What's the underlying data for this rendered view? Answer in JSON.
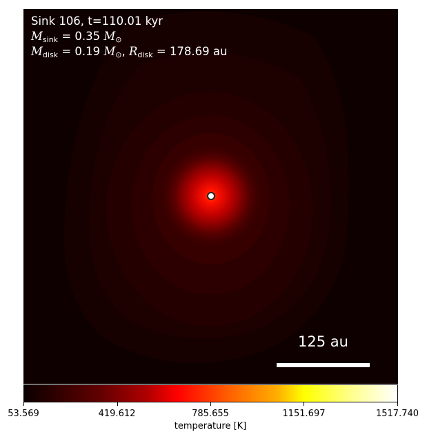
{
  "annotation": {
    "line1": "Sink 106, t=110.01 kyr",
    "m_sink_symbol": "M",
    "m_sink_sub": "sink",
    "m_sink_value": "= 0.35",
    "m_sun": "M",
    "m_sun_sub": "⊙",
    "m_disk_symbol": "M",
    "m_disk_sub": "disk",
    "m_disk_value": "= 0.19",
    "r_disk_symbol": "R",
    "r_disk_sub": "disk",
    "r_disk_value": "= 178.69 au",
    "comma": ","
  },
  "scale_bar": {
    "label": "125 au"
  },
  "chart_data": {
    "type": "heatmap",
    "colormap": "hot",
    "colorbar": {
      "label": "temperature [K]",
      "range": [
        53.569,
        1517.74
      ],
      "ticks": [
        "53.569",
        "419.612",
        "785.655",
        "1151.697",
        "1517.740"
      ],
      "orientation": "horizontal",
      "placement": "bottom"
    },
    "marker": {
      "type": "sink",
      "position": "center"
    },
    "background_color": "#0f0000"
  }
}
